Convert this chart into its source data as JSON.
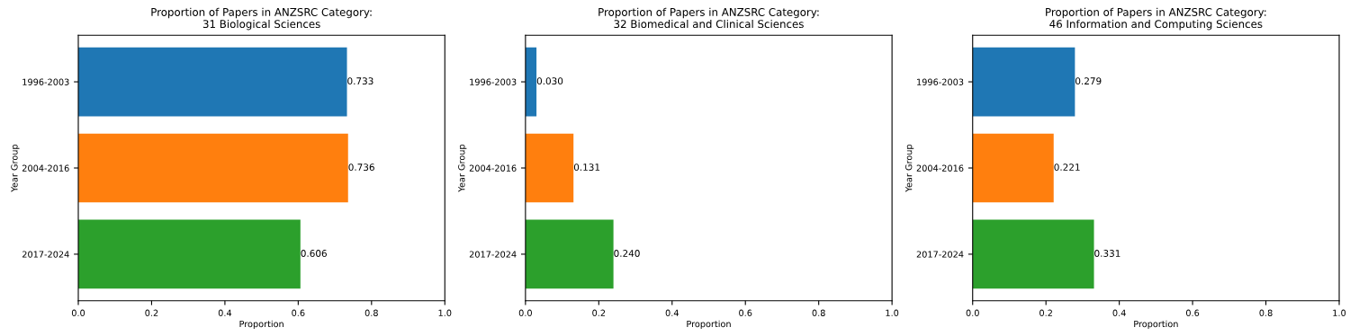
{
  "chart_data": [
    {
      "type": "bar",
      "orientation": "horizontal",
      "title": "Proportion of Papers in ANZSRC Category:\n31 Biological Sciences",
      "xlabel": "Proportion",
      "ylabel": "Year Group",
      "categories": [
        "1996-2003",
        "2004-2016",
        "2017-2024"
      ],
      "values": [
        0.733,
        0.736,
        0.606
      ],
      "colors": [
        "#1f77b4",
        "#ff7f0e",
        "#2ca02c"
      ],
      "value_labels": [
        "0.733",
        "0.736",
        "0.606"
      ],
      "xlim": [
        0,
        1
      ],
      "xticks": [
        {
          "value": 0,
          "label": "0.0"
        },
        {
          "value": 0.2,
          "label": "0.2"
        },
        {
          "value": 0.4,
          "label": "0.4"
        },
        {
          "value": 0.6,
          "label": "0.6"
        },
        {
          "value": 0.8,
          "label": "0.8"
        },
        {
          "value": 1,
          "label": "1.0"
        }
      ],
      "grid": false,
      "legend": false
    },
    {
      "type": "bar",
      "orientation": "horizontal",
      "title": "Proportion of Papers in ANZSRC Category:\n32 Biomedical and Clinical Sciences",
      "xlabel": "Proportion",
      "ylabel": "Year Group",
      "categories": [
        "1996-2003",
        "2004-2016",
        "2017-2024"
      ],
      "values": [
        0.03,
        0.131,
        0.24
      ],
      "colors": [
        "#1f77b4",
        "#ff7f0e",
        "#2ca02c"
      ],
      "value_labels": [
        "0.030",
        "0.131",
        "0.240"
      ],
      "xlim": [
        0,
        1
      ],
      "xticks": [
        {
          "value": 0,
          "label": "0.0"
        },
        {
          "value": 0.2,
          "label": "0.2"
        },
        {
          "value": 0.4,
          "label": "0.4"
        },
        {
          "value": 0.6,
          "label": "0.6"
        },
        {
          "value": 0.8,
          "label": "0.8"
        },
        {
          "value": 1,
          "label": "1.0"
        }
      ],
      "grid": false,
      "legend": false
    },
    {
      "type": "bar",
      "orientation": "horizontal",
      "title": "Proportion of Papers in ANZSRC Category:\n46 Information and Computing Sciences",
      "xlabel": "Proportion",
      "ylabel": "Year Group",
      "categories": [
        "1996-2003",
        "2004-2016",
        "2017-2024"
      ],
      "values": [
        0.279,
        0.221,
        0.331
      ],
      "colors": [
        "#1f77b4",
        "#ff7f0e",
        "#2ca02c"
      ],
      "value_labels": [
        "0.279",
        "0.221",
        "0.331"
      ],
      "xlim": [
        0,
        1
      ],
      "xticks": [
        {
          "value": 0,
          "label": "0.0"
        },
        {
          "value": 0.2,
          "label": "0.2"
        },
        {
          "value": 0.4,
          "label": "0.4"
        },
        {
          "value": 0.6,
          "label": "0.6"
        },
        {
          "value": 0.8,
          "label": "0.8"
        },
        {
          "value": 1,
          "label": "1.0"
        }
      ],
      "grid": false,
      "legend": false
    }
  ]
}
